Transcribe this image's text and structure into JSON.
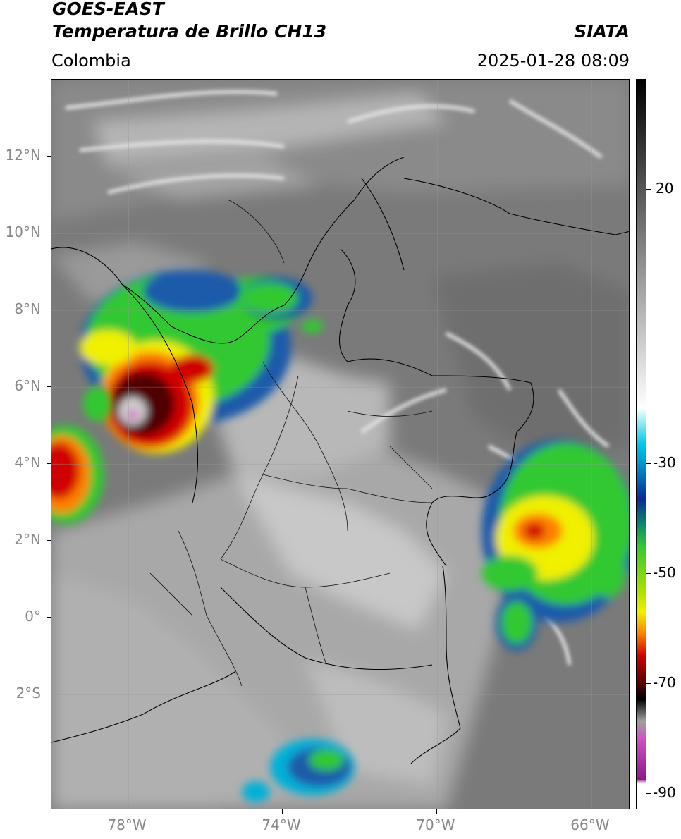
{
  "header": {
    "satellite": "GOES-EAST",
    "product": "Temperatura de Brillo CH13",
    "region": "Colombia",
    "agency": "SIATA",
    "datetime": "2025-01-28 08:09"
  },
  "axes": {
    "lat_ticks": [
      {
        "label": "12°N",
        "lat": 12
      },
      {
        "label": "10°N",
        "lat": 10
      },
      {
        "label": "8°N",
        "lat": 8
      },
      {
        "label": "6°N",
        "lat": 6
      },
      {
        "label": "4°N",
        "lat": 4
      },
      {
        "label": "2°N",
        "lat": 2
      },
      {
        "label": "0°",
        "lat": 0
      },
      {
        "label": "2°S",
        "lat": -2
      }
    ],
    "lon_ticks": [
      {
        "label": "78°W",
        "lon": -78
      },
      {
        "label": "74°W",
        "lon": -74
      },
      {
        "label": "70°W",
        "lon": -70
      },
      {
        "label": "66°W",
        "lon": -66
      }
    ],
    "lat_range": [
      -5,
      14
    ],
    "lon_range": [
      -80,
      -65
    ]
  },
  "colorbar": {
    "ticks": [
      {
        "label": "20",
        "value": 20
      },
      {
        "label": "-30",
        "value": -30
      },
      {
        "label": "-50",
        "value": -50
      },
      {
        "label": "-70",
        "value": -70
      },
      {
        "label": "-90",
        "value": -90
      }
    ],
    "colors": {
      "warm_gray_top": "#000000",
      "cyan": "#00c8e6",
      "blue": "#0a2a9a",
      "green": "#32c832",
      "yellow": "#f0f000",
      "orange": "#ff8000",
      "red": "#d00000",
      "dark_red": "#500000",
      "magenta": "#d050c0",
      "white": "#ffffff"
    }
  }
}
